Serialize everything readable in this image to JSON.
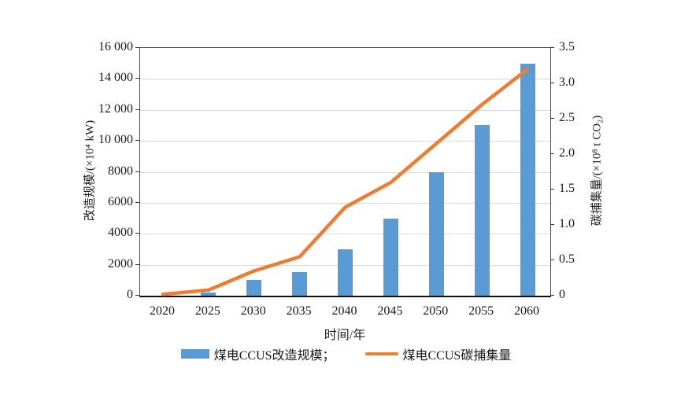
{
  "chart_data": {
    "type": "bar",
    "combo": "bar+line dual-axis",
    "title": "",
    "categories": [
      "2020",
      "2025",
      "2030",
      "2035",
      "2040",
      "2045",
      "2050",
      "2055",
      "2060"
    ],
    "series": [
      {
        "name": "煤电CCUS改造规模",
        "render": "bar",
        "axis": "left",
        "color": "#5B9BD5",
        "values": [
          0,
          200,
          1000,
          1500,
          3000,
          5000,
          8000,
          11000,
          15000
        ]
      },
      {
        "name": "煤电CCUS碳捕集量",
        "render": "line",
        "axis": "right",
        "color": "#ED7D31",
        "values": [
          0.02,
          0.08,
          0.35,
          0.55,
          1.25,
          1.6,
          2.15,
          2.7,
          3.2
        ]
      }
    ],
    "xlabel": "时间/年",
    "ylabel_left": "改造规模/(×10⁴ kW)",
    "ylabel_right": "碳捕集量/(×10⁸ t CO₂)",
    "ylim_left": [
      0,
      16000
    ],
    "ylim_right": [
      0,
      3.5
    ],
    "left_ticks": [
      {
        "v": 16000,
        "label": "16 000"
      },
      {
        "v": 14000,
        "label": "14 000"
      },
      {
        "v": 12000,
        "label": "12 000"
      },
      {
        "v": 10000,
        "label": "10 000"
      },
      {
        "v": 8000,
        "label": "8000"
      },
      {
        "v": 6000,
        "label": "6000"
      },
      {
        "v": 4000,
        "label": "4000"
      },
      {
        "v": 2000,
        "label": "2000"
      },
      {
        "v": 0,
        "label": "0"
      }
    ],
    "right_ticks": [
      {
        "v": 3.5,
        "label": "3.5"
      },
      {
        "v": 3.0,
        "label": "3.0"
      },
      {
        "v": 2.5,
        "label": "2.5"
      },
      {
        "v": 2.0,
        "label": "2.0"
      },
      {
        "v": 1.5,
        "label": "1.5"
      },
      {
        "v": 1.0,
        "label": "1.0"
      },
      {
        "v": 0.5,
        "label": "0.5"
      },
      {
        "v": 0,
        "label": "0"
      }
    ],
    "grid": true,
    "legend_position": "bottom"
  },
  "legend": {
    "bar_label": "煤电CCUS改造规模；",
    "line_label": "煤电CCUS碳捕集量"
  },
  "colors": {
    "bar": "#5B9BD5",
    "line": "#ED7D31",
    "gridline": "#d9d9d9"
  }
}
